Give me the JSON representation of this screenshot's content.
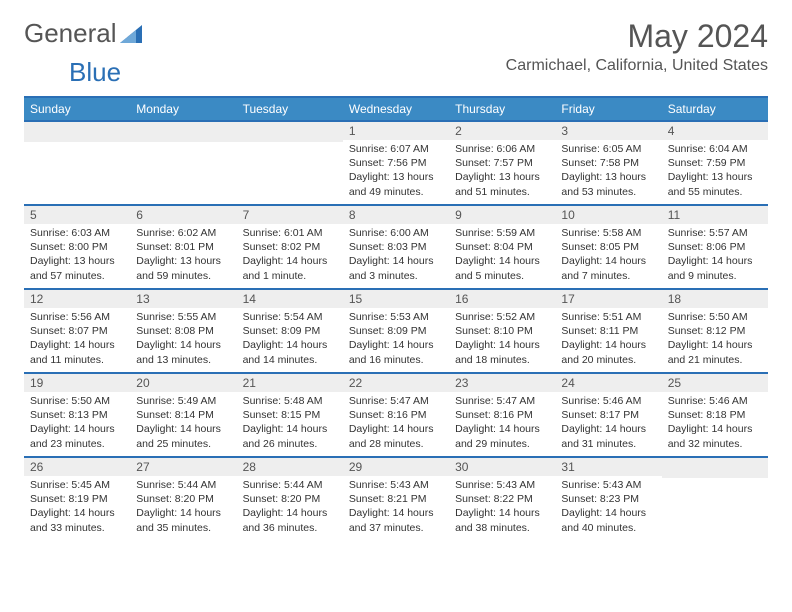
{
  "logo": {
    "part1": "General",
    "part2": "Blue"
  },
  "title": "May 2024",
  "location": "Carmichael, California, United States",
  "day_headers": [
    "Sunday",
    "Monday",
    "Tuesday",
    "Wednesday",
    "Thursday",
    "Friday",
    "Saturday"
  ],
  "colors": {
    "header_bg": "#3b8ac4",
    "header_border": "#2a6fb5",
    "daynum_bg": "#eeeeee",
    "text": "#333333",
    "title_text": "#555555"
  },
  "weeks": [
    [
      {
        "empty": true
      },
      {
        "empty": true
      },
      {
        "empty": true
      },
      {
        "day": "1",
        "sunrise": "Sunrise: 6:07 AM",
        "sunset": "Sunset: 7:56 PM",
        "daylight": "Daylight: 13 hours and 49 minutes."
      },
      {
        "day": "2",
        "sunrise": "Sunrise: 6:06 AM",
        "sunset": "Sunset: 7:57 PM",
        "daylight": "Daylight: 13 hours and 51 minutes."
      },
      {
        "day": "3",
        "sunrise": "Sunrise: 6:05 AM",
        "sunset": "Sunset: 7:58 PM",
        "daylight": "Daylight: 13 hours and 53 minutes."
      },
      {
        "day": "4",
        "sunrise": "Sunrise: 6:04 AM",
        "sunset": "Sunset: 7:59 PM",
        "daylight": "Daylight: 13 hours and 55 minutes."
      }
    ],
    [
      {
        "day": "5",
        "sunrise": "Sunrise: 6:03 AM",
        "sunset": "Sunset: 8:00 PM",
        "daylight": "Daylight: 13 hours and 57 minutes."
      },
      {
        "day": "6",
        "sunrise": "Sunrise: 6:02 AM",
        "sunset": "Sunset: 8:01 PM",
        "daylight": "Daylight: 13 hours and 59 minutes."
      },
      {
        "day": "7",
        "sunrise": "Sunrise: 6:01 AM",
        "sunset": "Sunset: 8:02 PM",
        "daylight": "Daylight: 14 hours and 1 minute."
      },
      {
        "day": "8",
        "sunrise": "Sunrise: 6:00 AM",
        "sunset": "Sunset: 8:03 PM",
        "daylight": "Daylight: 14 hours and 3 minutes."
      },
      {
        "day": "9",
        "sunrise": "Sunrise: 5:59 AM",
        "sunset": "Sunset: 8:04 PM",
        "daylight": "Daylight: 14 hours and 5 minutes."
      },
      {
        "day": "10",
        "sunrise": "Sunrise: 5:58 AM",
        "sunset": "Sunset: 8:05 PM",
        "daylight": "Daylight: 14 hours and 7 minutes."
      },
      {
        "day": "11",
        "sunrise": "Sunrise: 5:57 AM",
        "sunset": "Sunset: 8:06 PM",
        "daylight": "Daylight: 14 hours and 9 minutes."
      }
    ],
    [
      {
        "day": "12",
        "sunrise": "Sunrise: 5:56 AM",
        "sunset": "Sunset: 8:07 PM",
        "daylight": "Daylight: 14 hours and 11 minutes."
      },
      {
        "day": "13",
        "sunrise": "Sunrise: 5:55 AM",
        "sunset": "Sunset: 8:08 PM",
        "daylight": "Daylight: 14 hours and 13 minutes."
      },
      {
        "day": "14",
        "sunrise": "Sunrise: 5:54 AM",
        "sunset": "Sunset: 8:09 PM",
        "daylight": "Daylight: 14 hours and 14 minutes."
      },
      {
        "day": "15",
        "sunrise": "Sunrise: 5:53 AM",
        "sunset": "Sunset: 8:09 PM",
        "daylight": "Daylight: 14 hours and 16 minutes."
      },
      {
        "day": "16",
        "sunrise": "Sunrise: 5:52 AM",
        "sunset": "Sunset: 8:10 PM",
        "daylight": "Daylight: 14 hours and 18 minutes."
      },
      {
        "day": "17",
        "sunrise": "Sunrise: 5:51 AM",
        "sunset": "Sunset: 8:11 PM",
        "daylight": "Daylight: 14 hours and 20 minutes."
      },
      {
        "day": "18",
        "sunrise": "Sunrise: 5:50 AM",
        "sunset": "Sunset: 8:12 PM",
        "daylight": "Daylight: 14 hours and 21 minutes."
      }
    ],
    [
      {
        "day": "19",
        "sunrise": "Sunrise: 5:50 AM",
        "sunset": "Sunset: 8:13 PM",
        "daylight": "Daylight: 14 hours and 23 minutes."
      },
      {
        "day": "20",
        "sunrise": "Sunrise: 5:49 AM",
        "sunset": "Sunset: 8:14 PM",
        "daylight": "Daylight: 14 hours and 25 minutes."
      },
      {
        "day": "21",
        "sunrise": "Sunrise: 5:48 AM",
        "sunset": "Sunset: 8:15 PM",
        "daylight": "Daylight: 14 hours and 26 minutes."
      },
      {
        "day": "22",
        "sunrise": "Sunrise: 5:47 AM",
        "sunset": "Sunset: 8:16 PM",
        "daylight": "Daylight: 14 hours and 28 minutes."
      },
      {
        "day": "23",
        "sunrise": "Sunrise: 5:47 AM",
        "sunset": "Sunset: 8:16 PM",
        "daylight": "Daylight: 14 hours and 29 minutes."
      },
      {
        "day": "24",
        "sunrise": "Sunrise: 5:46 AM",
        "sunset": "Sunset: 8:17 PM",
        "daylight": "Daylight: 14 hours and 31 minutes."
      },
      {
        "day": "25",
        "sunrise": "Sunrise: 5:46 AM",
        "sunset": "Sunset: 8:18 PM",
        "daylight": "Daylight: 14 hours and 32 minutes."
      }
    ],
    [
      {
        "day": "26",
        "sunrise": "Sunrise: 5:45 AM",
        "sunset": "Sunset: 8:19 PM",
        "daylight": "Daylight: 14 hours and 33 minutes."
      },
      {
        "day": "27",
        "sunrise": "Sunrise: 5:44 AM",
        "sunset": "Sunset: 8:20 PM",
        "daylight": "Daylight: 14 hours and 35 minutes."
      },
      {
        "day": "28",
        "sunrise": "Sunrise: 5:44 AM",
        "sunset": "Sunset: 8:20 PM",
        "daylight": "Daylight: 14 hours and 36 minutes."
      },
      {
        "day": "29",
        "sunrise": "Sunrise: 5:43 AM",
        "sunset": "Sunset: 8:21 PM",
        "daylight": "Daylight: 14 hours and 37 minutes."
      },
      {
        "day": "30",
        "sunrise": "Sunrise: 5:43 AM",
        "sunset": "Sunset: 8:22 PM",
        "daylight": "Daylight: 14 hours and 38 minutes."
      },
      {
        "day": "31",
        "sunrise": "Sunrise: 5:43 AM",
        "sunset": "Sunset: 8:23 PM",
        "daylight": "Daylight: 14 hours and 40 minutes."
      },
      {
        "empty": true
      }
    ]
  ]
}
